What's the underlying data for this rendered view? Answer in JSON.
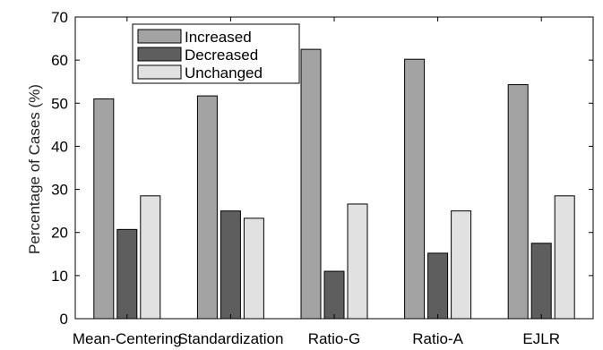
{
  "chart_data": {
    "type": "bar",
    "title": "",
    "xlabel": "",
    "ylabel": "Percentage of Cases (%)",
    "ylim": [
      0,
      70
    ],
    "yticks": [
      0,
      10,
      20,
      30,
      40,
      50,
      60,
      70
    ],
    "grid": false,
    "legend_position": "top-left",
    "categories": [
      "Mean-Centering",
      "Standardization",
      "Ratio-G",
      "Ratio-A",
      "EJLR"
    ],
    "series": [
      {
        "name": "Increased",
        "color": "#a3a3a3",
        "values": [
          51,
          51.7,
          62.5,
          60.2,
          54.3
        ]
      },
      {
        "name": "Decreased",
        "color": "#5e5e5e",
        "values": [
          20.7,
          25,
          11,
          15.2,
          17.5
        ]
      },
      {
        "name": "Unchanged",
        "color": "#e1e1e1",
        "values": [
          28.5,
          23.3,
          26.6,
          25,
          28.5
        ]
      }
    ]
  }
}
